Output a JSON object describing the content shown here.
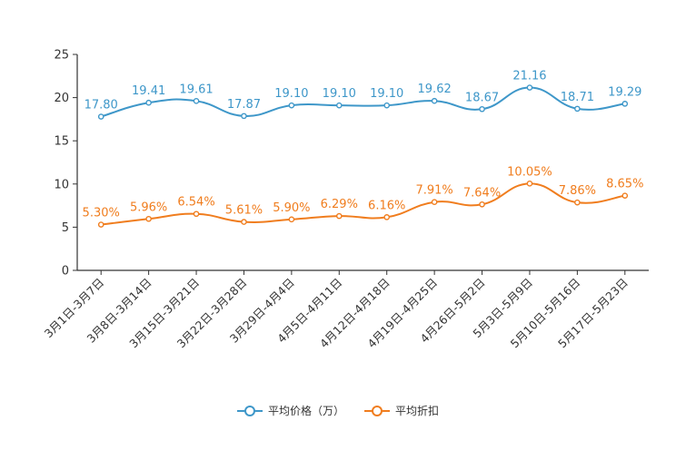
{
  "chart_data": {
    "type": "line",
    "categories": [
      "3月1日-3月7日",
      "3月8日-3月14日",
      "3月15日-3月21日",
      "3月22日-3月28日",
      "3月29日-4月4日",
      "4月5日-4月11日",
      "4月12日-4月18日",
      "4月19日-4月25日",
      "4月26日-5月2日",
      "5月3日-5月9日",
      "5月10日-5月16日",
      "5月17日-5月23日"
    ],
    "series": [
      {
        "name": "平均价格（万）",
        "color": "#3e97c9",
        "values": [
          17.8,
          19.41,
          19.61,
          17.87,
          19.1,
          19.1,
          19.1,
          19.62,
          18.67,
          21.16,
          18.71,
          19.29
        ],
        "labels": [
          "17.80",
          "19.41",
          "19.61",
          "17.87",
          "19.10",
          "19.10",
          "19.10",
          "19.62",
          "18.67",
          "21.16",
          "18.71",
          "19.29"
        ]
      },
      {
        "name": "平均折扣",
        "color": "#f07d1e",
        "values": [
          5.3,
          5.96,
          6.54,
          5.61,
          5.9,
          6.29,
          6.16,
          7.91,
          7.64,
          10.05,
          7.86,
          8.65
        ],
        "labels": [
          "5.30%",
          "5.96%",
          "6.54%",
          "5.61%",
          "5.90%",
          "6.29%",
          "6.16%",
          "7.91%",
          "7.64%",
          "10.05%",
          "7.86%",
          "8.65%"
        ]
      }
    ],
    "yticks": [
      "0",
      "5",
      "10",
      "15",
      "20",
      "25"
    ],
    "ylim": [
      0,
      25
    ],
    "title": "",
    "xlabel": "",
    "ylabel": "",
    "grid": false,
    "legend_position": "bottom"
  }
}
